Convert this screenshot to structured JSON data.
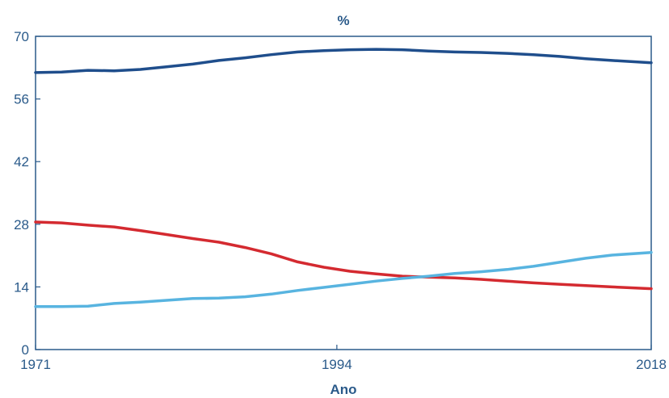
{
  "chart_data": {
    "type": "line",
    "title": "%",
    "xlabel": "Ano",
    "ylabel": "",
    "xlim": [
      1971,
      2018
    ],
    "ylim": [
      0,
      70
    ],
    "x_ticks": [
      "1971",
      "1994",
      "2018"
    ],
    "y_ticks": [
      "0",
      "14",
      "28",
      "42",
      "56",
      "70"
    ],
    "grid": false,
    "legend": "none",
    "x": [
      1971,
      1973,
      1975,
      1977,
      1979,
      1981,
      1983,
      1985,
      1987,
      1989,
      1991,
      1993,
      1995,
      1997,
      1999,
      2001,
      2003,
      2005,
      2007,
      2009,
      2011,
      2013,
      2015,
      2018
    ],
    "series": [
      {
        "color": "#1f4e8c",
        "values": [
          61.9,
          62.0,
          62.4,
          62.3,
          62.6,
          63.2,
          63.8,
          64.6,
          65.2,
          65.9,
          66.5,
          66.8,
          67.0,
          67.1,
          67.0,
          66.7,
          66.5,
          66.4,
          66.2,
          65.9,
          65.5,
          65.0,
          64.6,
          64.1
        ]
      },
      {
        "color": "#d42a30",
        "values": [
          28.5,
          28.3,
          27.8,
          27.4,
          26.6,
          25.7,
          24.8,
          24.0,
          22.8,
          21.4,
          19.6,
          18.4,
          17.5,
          16.9,
          16.4,
          16.2,
          16.0,
          15.7,
          15.3,
          14.9,
          14.6,
          14.3,
          14.0,
          13.6
        ]
      },
      {
        "color": "#58b4e0",
        "values": [
          9.6,
          9.6,
          9.7,
          10.3,
          10.6,
          11.0,
          11.4,
          11.5,
          11.8,
          12.4,
          13.2,
          13.9,
          14.6,
          15.3,
          15.9,
          16.4,
          17.0,
          17.4,
          17.9,
          18.6,
          19.5,
          20.4,
          21.1,
          21.7
        ]
      }
    ]
  }
}
